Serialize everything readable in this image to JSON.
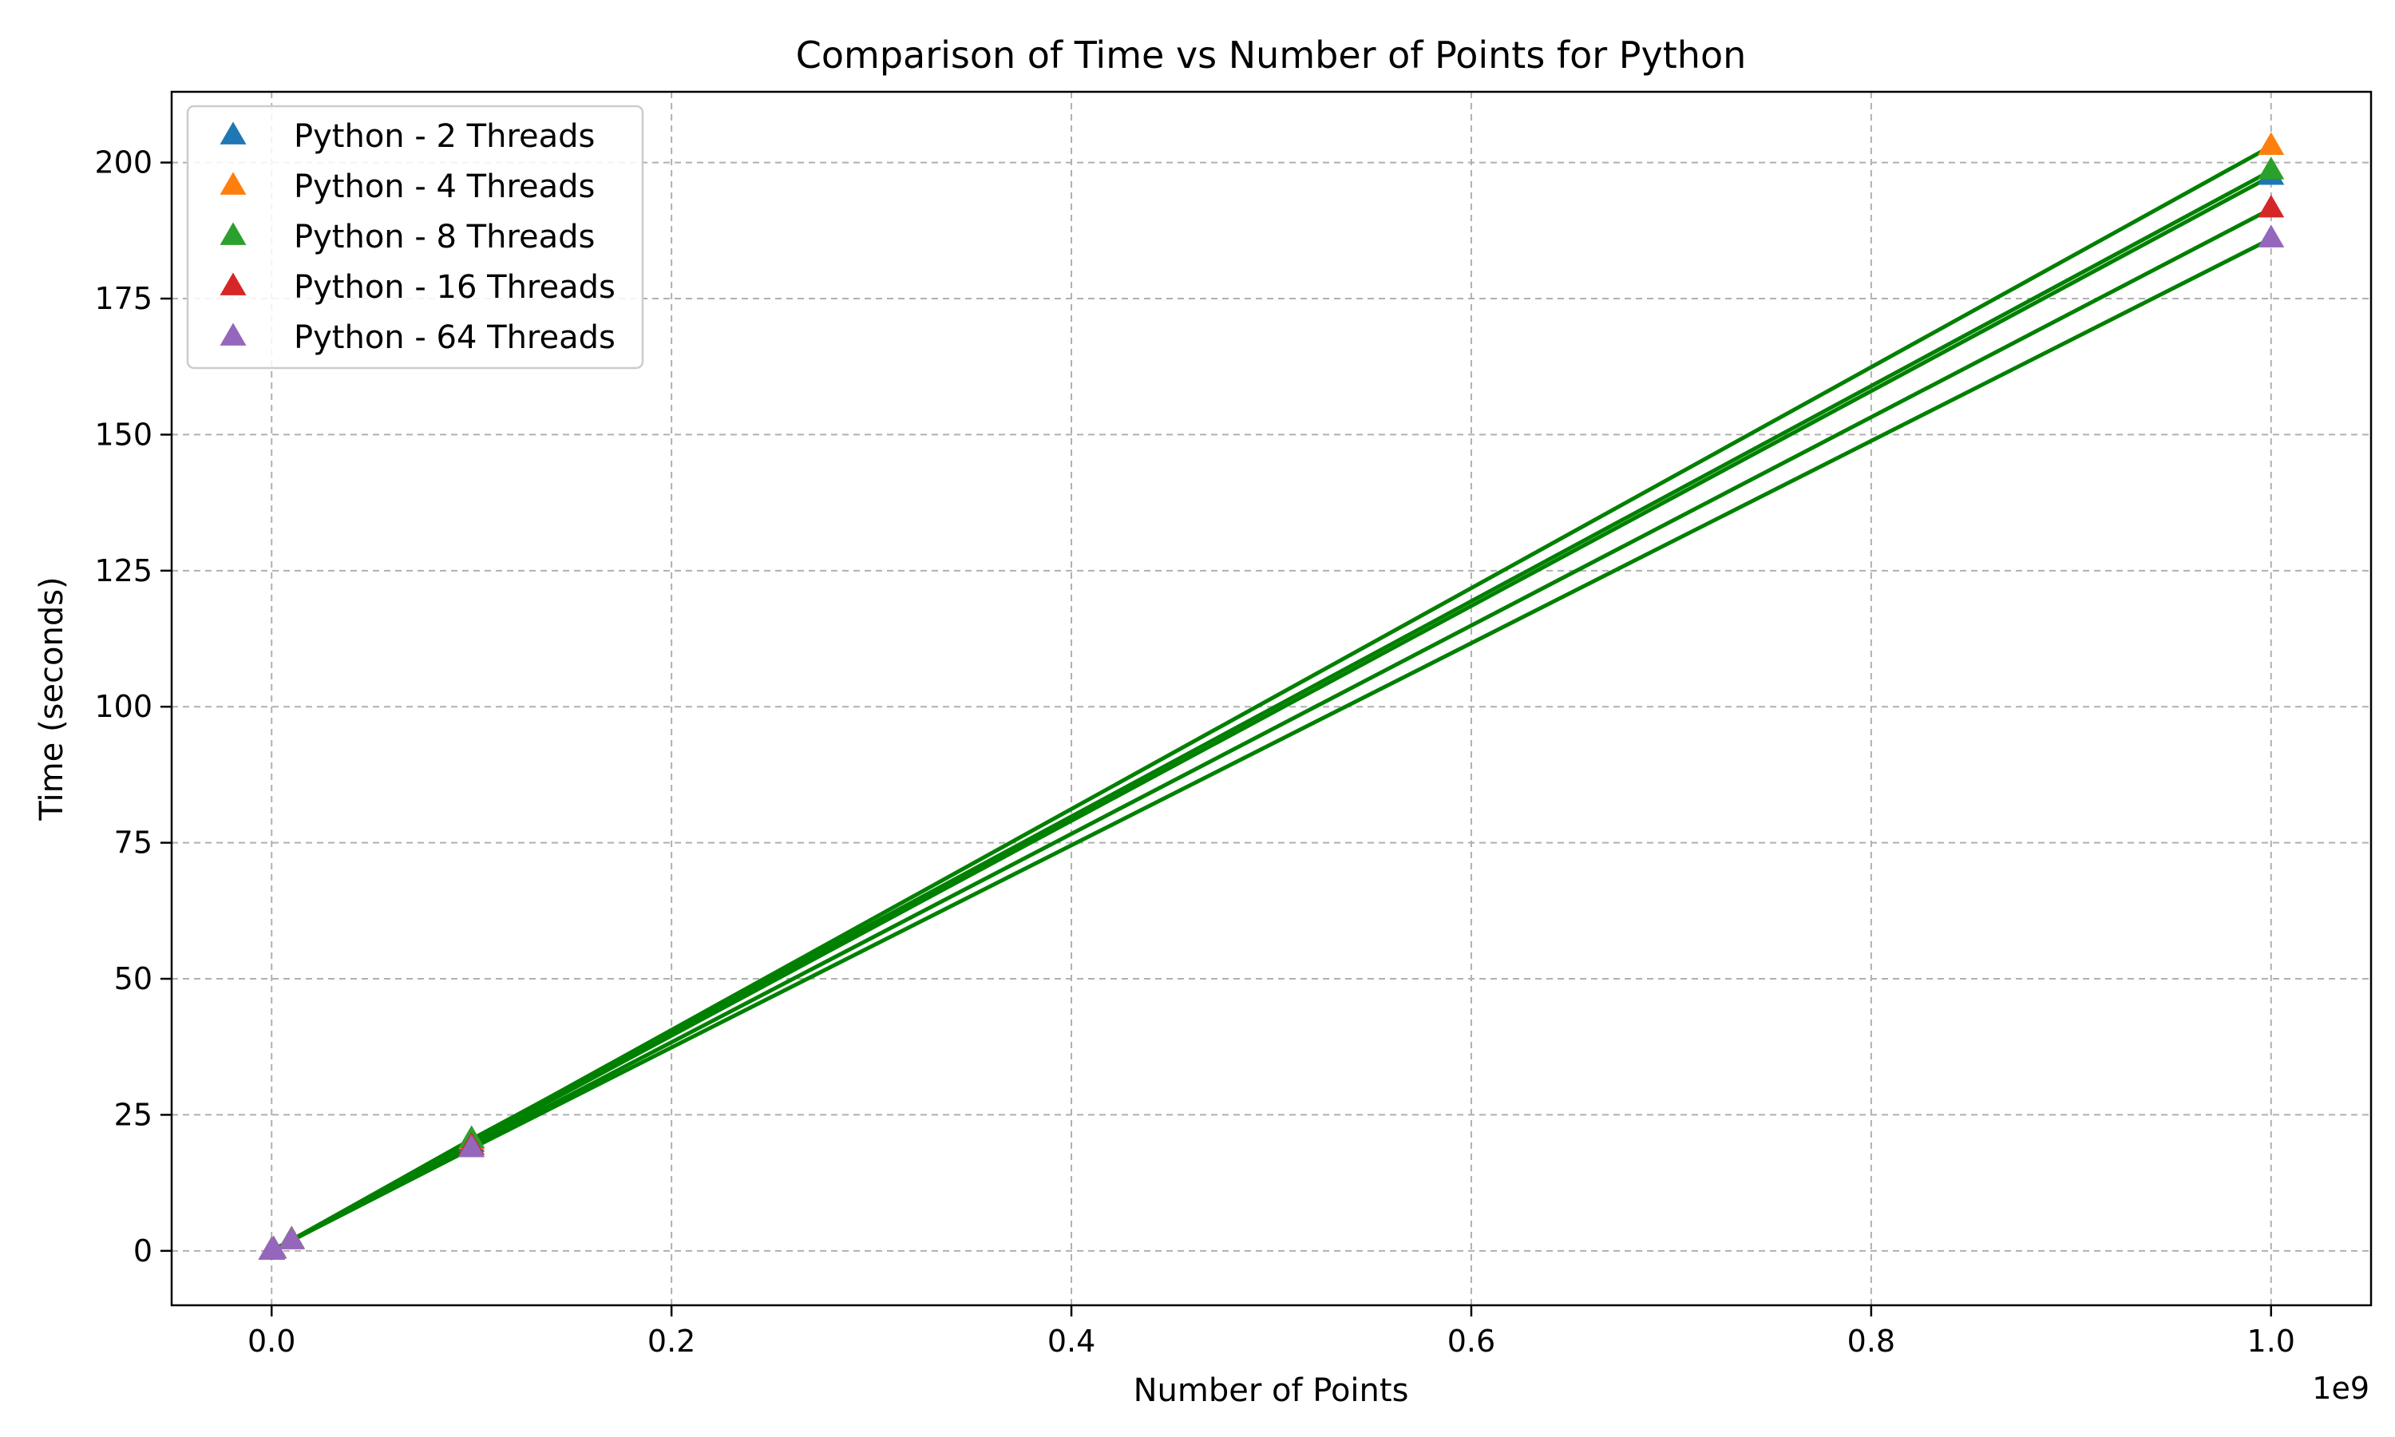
{
  "chart_data": {
    "type": "scatter",
    "title": "Comparison of Time vs Number of Points for Python",
    "xlabel": "Number of Points",
    "ylabel": "Time (seconds)",
    "x_offset_label": "1e9",
    "xlim": [
      -50000000,
      1050000000
    ],
    "ylim": [
      -10,
      213
    ],
    "x_ticks": [
      0,
      200000000,
      400000000,
      600000000,
      800000000,
      1000000000
    ],
    "x_tick_labels": [
      "0.0",
      "0.2",
      "0.4",
      "0.6",
      "0.8",
      "1.0"
    ],
    "y_ticks": [
      0,
      25,
      50,
      75,
      100,
      125,
      150,
      175,
      200
    ],
    "y_tick_labels": [
      "0",
      "25",
      "50",
      "75",
      "100",
      "125",
      "150",
      "175",
      "200"
    ],
    "grid": true,
    "legend_position": "upper-left",
    "line_color": "#008000",
    "marker": "triangle",
    "x": [
      1000,
      10000,
      100000,
      1000000,
      10000000,
      100000000,
      1000000000
    ],
    "series": [
      {
        "name": "Python - 2 Threads",
        "color": "#1f77b4",
        "values": [
          0.0,
          0.0,
          0.02,
          0.2,
          2.0,
          19.8,
          197.5
        ]
      },
      {
        "name": "Python - 4 Threads",
        "color": "#ff7f0e",
        "values": [
          0.0,
          0.0,
          0.02,
          0.2,
          2.0,
          20.3,
          203.0
        ]
      },
      {
        "name": "Python - 8 Threads",
        "color": "#2ca02c",
        "values": [
          0.0,
          0.0,
          0.02,
          0.2,
          2.0,
          20.5,
          198.5
        ]
      },
      {
        "name": "Python - 16 Threads",
        "color": "#d62728",
        "values": [
          0.0,
          0.0,
          0.02,
          0.2,
          1.9,
          19.2,
          191.5
        ]
      },
      {
        "name": "Python - 64 Threads",
        "color": "#9467bd",
        "values": [
          0.0,
          0.0,
          0.02,
          0.2,
          1.9,
          18.8,
          186.0
        ]
      }
    ]
  }
}
